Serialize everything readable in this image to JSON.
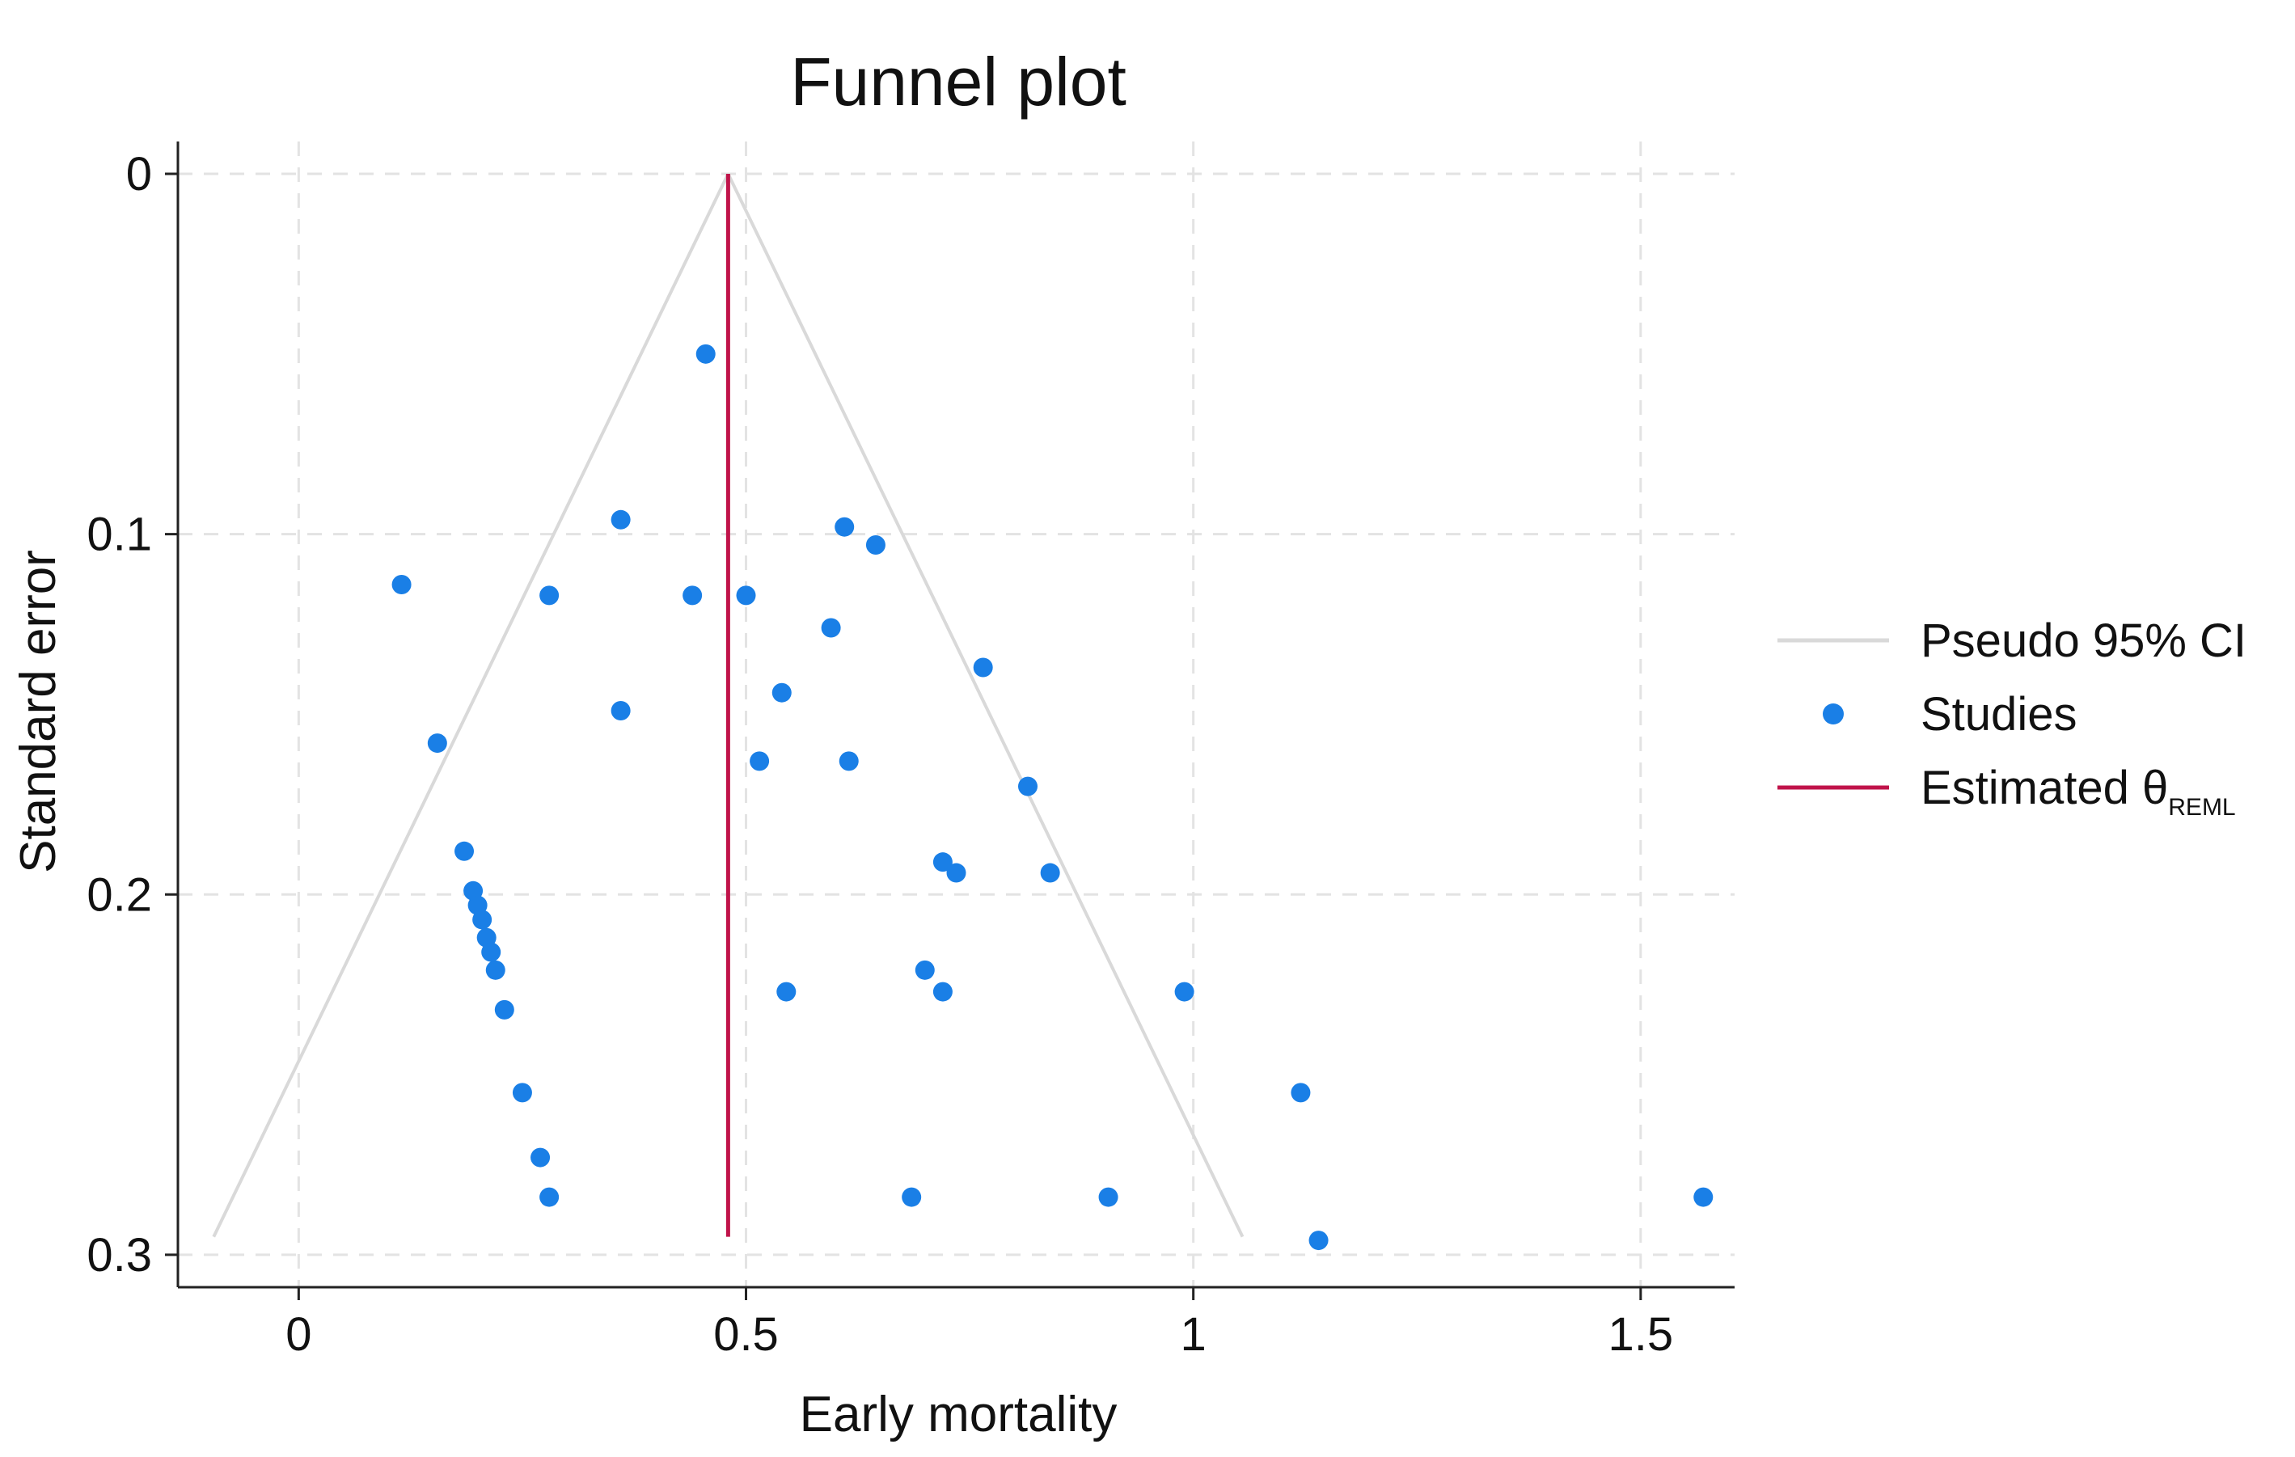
{
  "chart_data": {
    "type": "scatter",
    "title": "Funnel plot",
    "xlabel": "Early mortality",
    "ylabel": "Standard error",
    "xlim": [
      -0.135,
      1.605
    ],
    "ylim": [
      0,
      0.309
    ],
    "y_reversed": true,
    "xticks": [
      0,
      0.5,
      1,
      1.5
    ],
    "xtick_labels": [
      "0",
      "0.5",
      "1",
      "1.5"
    ],
    "yticks": [
      0,
      0.1,
      0.2,
      0.3
    ],
    "ytick_labels": [
      "0",
      "0.1",
      "0.2",
      "0.3"
    ],
    "grid": true,
    "legend_position": "right",
    "legend": {
      "ci_label": "Pseudo 95% CI",
      "studies_label": "Studies",
      "estimate_label": "Estimated θ",
      "estimate_subscript": "REML"
    },
    "estimate": 0.48,
    "pseudo_ci": {
      "apex": [
        0.48,
        0
      ],
      "left_base": [
        -0.095,
        0.295
      ],
      "right_base": [
        1.055,
        0.295
      ]
    },
    "series": [
      {
        "name": "Studies",
        "points": [
          [
            0.455,
            0.05
          ],
          [
            0.36,
            0.096
          ],
          [
            0.61,
            0.098
          ],
          [
            0.645,
            0.103
          ],
          [
            0.115,
            0.114
          ],
          [
            0.28,
            0.117
          ],
          [
            0.44,
            0.117
          ],
          [
            0.5,
            0.117
          ],
          [
            0.595,
            0.126
          ],
          [
            0.765,
            0.137
          ],
          [
            0.54,
            0.144
          ],
          [
            0.36,
            0.149
          ],
          [
            0.155,
            0.158
          ],
          [
            0.515,
            0.163
          ],
          [
            0.615,
            0.163
          ],
          [
            0.815,
            0.17
          ],
          [
            0.185,
            0.188
          ],
          [
            0.72,
            0.191
          ],
          [
            0.735,
            0.194
          ],
          [
            0.84,
            0.194
          ],
          [
            0.195,
            0.199
          ],
          [
            0.2,
            0.203
          ],
          [
            0.205,
            0.207
          ],
          [
            0.21,
            0.212
          ],
          [
            0.215,
            0.216
          ],
          [
            0.22,
            0.221
          ],
          [
            0.7,
            0.221
          ],
          [
            0.545,
            0.227
          ],
          [
            0.72,
            0.227
          ],
          [
            0.99,
            0.227
          ],
          [
            0.23,
            0.232
          ],
          [
            0.25,
            0.255
          ],
          [
            1.12,
            0.255
          ],
          [
            0.27,
            0.273
          ],
          [
            0.28,
            0.284
          ],
          [
            0.685,
            0.284
          ],
          [
            0.905,
            0.284
          ],
          [
            1.57,
            0.284
          ],
          [
            1.14,
            0.296
          ]
        ]
      }
    ]
  },
  "colors": {
    "points": "#1a7fe6",
    "estimate_line": "#c0134a",
    "ci_line": "#d9d9d9",
    "grid": "#e3e3e3",
    "axis": "#222222"
  }
}
